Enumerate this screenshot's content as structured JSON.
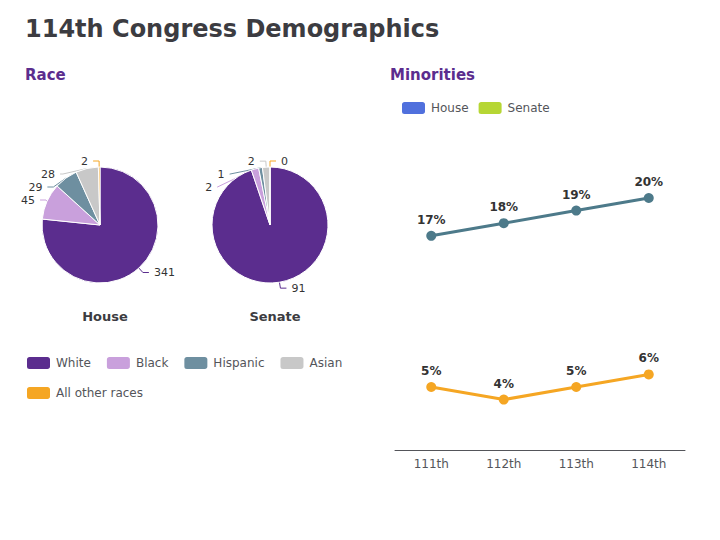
{
  "chart_data": [
    {
      "type": "pie",
      "title": "House",
      "annotations": [
        "114th Congress Demographics",
        "Race"
      ],
      "categories": [
        "White",
        "Black",
        "Hispanic",
        "Asian",
        "All other races"
      ],
      "values": [
        341,
        45,
        29,
        28,
        2
      ],
      "colors": [
        "#5b2d8e",
        "#c9a0dc",
        "#6e8fa0",
        "#c8c8c8",
        "#f5a623"
      ],
      "data_labels": true,
      "legend": "bottom"
    },
    {
      "type": "pie",
      "title": "Senate",
      "categories": [
        "White",
        "Black",
        "Hispanic",
        "Asian",
        "All other races"
      ],
      "values": [
        91,
        2,
        1,
        2,
        0
      ],
      "colors": [
        "#5b2d8e",
        "#c9a0dc",
        "#6e8fa0",
        "#c8c8c8",
        "#f5a623"
      ],
      "data_labels": true
    },
    {
      "type": "line",
      "title": "Minorities",
      "categories": [
        "111th",
        "112th",
        "113th",
        "114th"
      ],
      "series": [
        {
          "name": "House",
          "color": "#4d7a8a",
          "values": [
            17,
            18,
            19,
            20
          ],
          "value_labels": [
            "17%",
            "18%",
            "19%",
            "20%"
          ]
        },
        {
          "name": "Senate",
          "color": "#f5a623",
          "values": [
            5,
            4,
            5,
            6
          ],
          "value_labels": [
            "5%",
            "4%",
            "5%",
            "6%"
          ]
        }
      ],
      "data_labels": true,
      "ylim": [
        0,
        25
      ],
      "yticks": [
        0,
        5,
        10,
        15,
        20,
        25
      ],
      "tick_labels": "x",
      "grid": false,
      "legend": "top"
    }
  ]
}
